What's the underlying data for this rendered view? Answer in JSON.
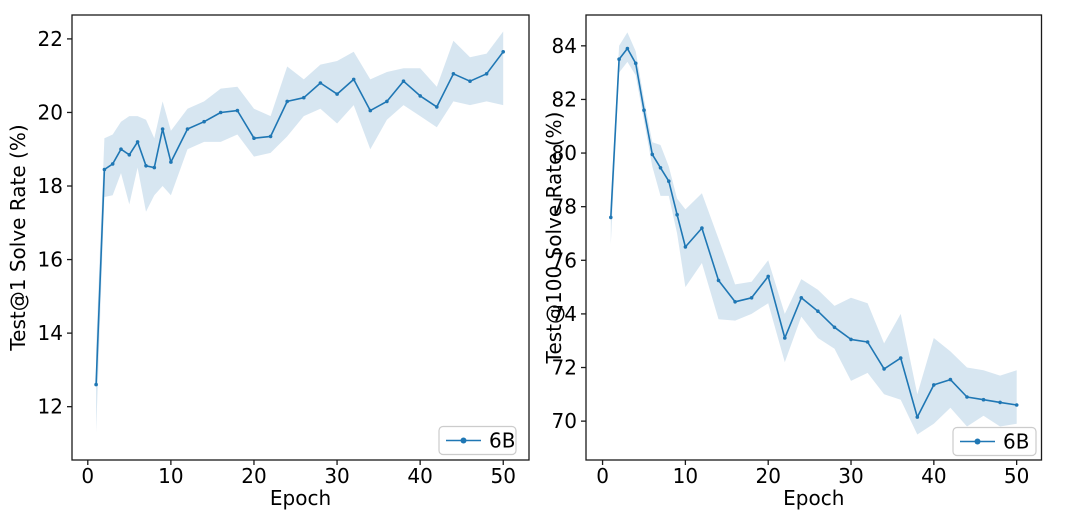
{
  "figure": {
    "background": "#ffffff",
    "text_color": "#000000",
    "accent_color": "#1f77b4"
  },
  "chart_data": [
    {
      "type": "line",
      "title": "",
      "xlabel": "Epoch",
      "ylabel": "Test@1 Solve Rate (%)",
      "xlim": [
        -1.9,
        53.1
      ],
      "ylim": [
        10.55,
        22.65
      ],
      "xticks": [
        0,
        10,
        20,
        30,
        40,
        50
      ],
      "yticks": [
        12,
        14,
        16,
        18,
        20,
        22
      ],
      "grid": false,
      "legend": {
        "label": "6B",
        "position": "lower right"
      },
      "series": [
        {
          "name": "6B",
          "color": "#1f77b4",
          "band_color": "#1f77b4",
          "band_alpha": 0.18,
          "marker": "point",
          "x": [
            1,
            2,
            3,
            4,
            5,
            6,
            7,
            8,
            9,
            10,
            12,
            14,
            16,
            18,
            20,
            22,
            24,
            26,
            28,
            30,
            32,
            34,
            36,
            38,
            40,
            42,
            44,
            46,
            48,
            50
          ],
          "y": [
            12.6,
            18.45,
            18.6,
            19.0,
            18.85,
            19.2,
            18.55,
            18.5,
            19.55,
            18.65,
            19.55,
            19.75,
            20.0,
            20.05,
            19.3,
            19.35,
            20.3,
            20.4,
            20.8,
            20.5,
            20.9,
            20.05,
            20.3,
            20.85,
            20.45,
            20.15,
            21.05,
            20.85,
            21.05,
            21.65
          ],
          "band_lower": [
            11.3,
            17.7,
            17.75,
            18.35,
            17.5,
            18.5,
            17.3,
            17.75,
            18.0,
            17.75,
            19.0,
            19.2,
            19.2,
            19.4,
            18.8,
            18.9,
            19.35,
            19.9,
            20.1,
            19.7,
            20.2,
            19.0,
            19.8,
            20.2,
            19.9,
            19.6,
            20.3,
            20.2,
            20.3,
            20.2
          ],
          "band_upper": [
            13.6,
            19.3,
            19.4,
            19.75,
            19.9,
            19.9,
            19.8,
            19.3,
            20.3,
            19.5,
            20.1,
            20.3,
            20.65,
            20.7,
            20.1,
            19.9,
            21.25,
            20.9,
            21.3,
            21.4,
            21.65,
            20.9,
            21.1,
            21.2,
            21.2,
            20.7,
            21.95,
            21.5,
            21.6,
            22.2
          ]
        }
      ]
    },
    {
      "type": "line",
      "title": "",
      "xlabel": "Epoch",
      "ylabel": "Test@100 Solve Rate (%)",
      "xlim": [
        -2.0,
        53.0
      ],
      "ylim": [
        68.55,
        85.15
      ],
      "xticks": [
        0,
        10,
        20,
        30,
        40,
        50
      ],
      "yticks": [
        70,
        72,
        74,
        76,
        78,
        80,
        82,
        84
      ],
      "grid": false,
      "legend": {
        "label": "6B",
        "position": "lower right"
      },
      "series": [
        {
          "name": "6B",
          "color": "#1f77b4",
          "band_color": "#1f77b4",
          "band_alpha": 0.18,
          "marker": "point",
          "x": [
            1,
            2,
            3,
            4,
            5,
            6,
            7,
            8,
            9,
            10,
            12,
            14,
            16,
            18,
            20,
            22,
            24,
            26,
            28,
            30,
            32,
            34,
            36,
            38,
            40,
            42,
            44,
            46,
            48,
            50
          ],
          "y": [
            77.6,
            83.5,
            83.9,
            83.35,
            81.6,
            79.95,
            79.45,
            78.95,
            77.7,
            76.5,
            77.2,
            75.25,
            74.45,
            74.6,
            75.4,
            73.1,
            74.6,
            74.1,
            73.5,
            73.05,
            72.95,
            71.95,
            72.35,
            70.15,
            71.35,
            71.55,
            70.9,
            70.8,
            70.7,
            70.6
          ],
          "band_lower": [
            76.6,
            83.0,
            83.4,
            82.9,
            81.2,
            79.5,
            78.4,
            78.4,
            77.0,
            75.0,
            75.9,
            73.8,
            73.75,
            74.0,
            74.4,
            72.2,
            73.9,
            73.1,
            72.7,
            71.5,
            71.8,
            71.0,
            70.8,
            69.5,
            69.9,
            70.5,
            69.8,
            70.2,
            69.8,
            69.9
          ],
          "band_upper": [
            78.2,
            84.0,
            84.5,
            83.8,
            82.0,
            80.4,
            80.3,
            79.5,
            78.3,
            77.9,
            78.5,
            76.8,
            75.1,
            75.2,
            76.0,
            74.0,
            75.3,
            74.9,
            74.3,
            74.6,
            74.4,
            72.9,
            74.0,
            71.0,
            73.1,
            72.6,
            72.0,
            71.9,
            71.7,
            71.9
          ]
        }
      ]
    }
  ]
}
